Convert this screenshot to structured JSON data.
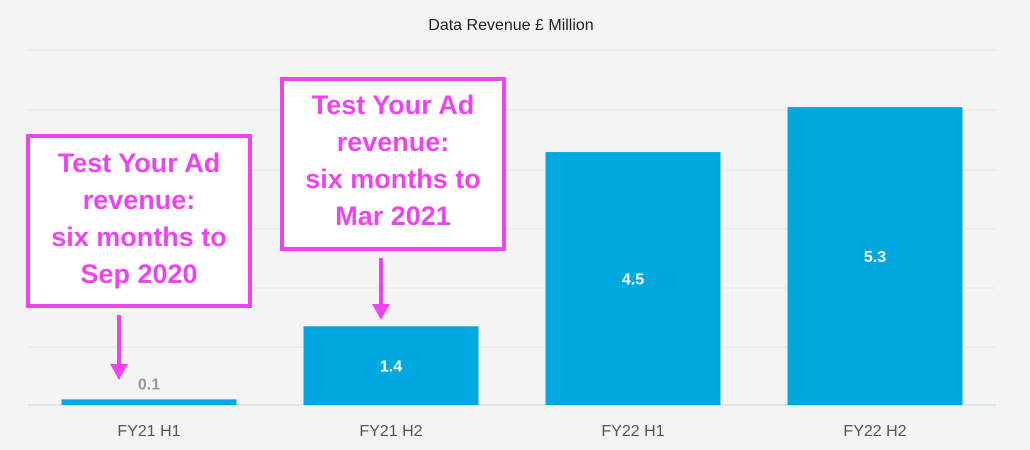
{
  "chart_data": {
    "type": "bar",
    "title": "Data Revenue £ Million",
    "xlabel": "",
    "ylabel": "",
    "categories": [
      "FY21 H1",
      "FY21 H2",
      "FY22 H1",
      "FY22 H2"
    ],
    "values": [
      0.1,
      1.4,
      4.5,
      5.3
    ],
    "data_labels": [
      "0.1",
      "1.4",
      "4.5",
      "5.3"
    ],
    "ylim": [
      0,
      6
    ],
    "grid": true,
    "legend": "none",
    "colors": {
      "bar": "#00a8e0",
      "label_inside": "#ffffff",
      "label_outside": "#999999",
      "callout": "#ee44ee"
    },
    "annotations": [
      {
        "category": "FY21 H1",
        "lines": [
          "Test Your Ad",
          "revenue:",
          "six months to",
          "Sep 2020"
        ]
      },
      {
        "category": "FY21 H2",
        "lines": [
          "Test Your Ad",
          "revenue:",
          "six months to",
          "Mar 2021"
        ]
      }
    ]
  }
}
